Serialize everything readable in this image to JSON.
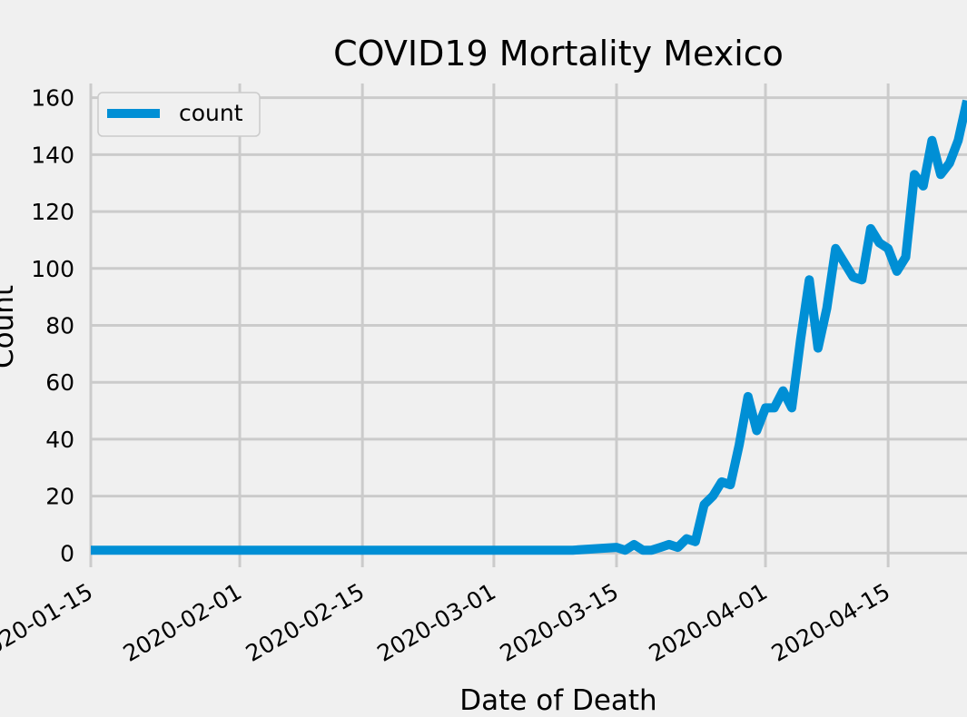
{
  "chart_data": {
    "type": "line",
    "title": "COVID19 Mortality Mexico",
    "xlabel": "Date of Death",
    "ylabel": "Count",
    "xlim": [
      "2020-01-15",
      "2020-04-24"
    ],
    "ylim": [
      -5,
      165
    ],
    "x_ticks": [
      "2020-01-15",
      "2020-02-01",
      "2020-02-15",
      "2020-03-01",
      "2020-03-15",
      "2020-04-01",
      "2020-04-15"
    ],
    "y_ticks": [
      0,
      20,
      40,
      60,
      80,
      100,
      120,
      140,
      160
    ],
    "grid": true,
    "legend": {
      "position": "upper-left",
      "entries": [
        "count"
      ]
    },
    "colors": {
      "background": "#f0f0f0",
      "grid": "#cbcbcb",
      "series": "#008fd5"
    },
    "series": [
      {
        "name": "count",
        "x": [
          "2020-01-15",
          "2020-03-10",
          "2020-03-15",
          "2020-03-16",
          "2020-03-17",
          "2020-03-18",
          "2020-03-19",
          "2020-03-20",
          "2020-03-21",
          "2020-03-22",
          "2020-03-23",
          "2020-03-24",
          "2020-03-25",
          "2020-03-26",
          "2020-03-27",
          "2020-03-28",
          "2020-03-29",
          "2020-03-30",
          "2020-03-31",
          "2020-04-01",
          "2020-04-02",
          "2020-04-03",
          "2020-04-04",
          "2020-04-05",
          "2020-04-06",
          "2020-04-07",
          "2020-04-08",
          "2020-04-09",
          "2020-04-10",
          "2020-04-11",
          "2020-04-12",
          "2020-04-13",
          "2020-04-14",
          "2020-04-15",
          "2020-04-16",
          "2020-04-17",
          "2020-04-18",
          "2020-04-19",
          "2020-04-20",
          "2020-04-21",
          "2020-04-22",
          "2020-04-23",
          "2020-04-24"
        ],
        "y": [
          1,
          1,
          2,
          1,
          3,
          1,
          1,
          2,
          3,
          2,
          5,
          4,
          17,
          20,
          25,
          24,
          38,
          55,
          43,
          51,
          51,
          57,
          51,
          75,
          96,
          72,
          86,
          107,
          102,
          97,
          96,
          114,
          109,
          107,
          99,
          104,
          133,
          129,
          145,
          133,
          137,
          145,
          159
        ]
      }
    ]
  }
}
